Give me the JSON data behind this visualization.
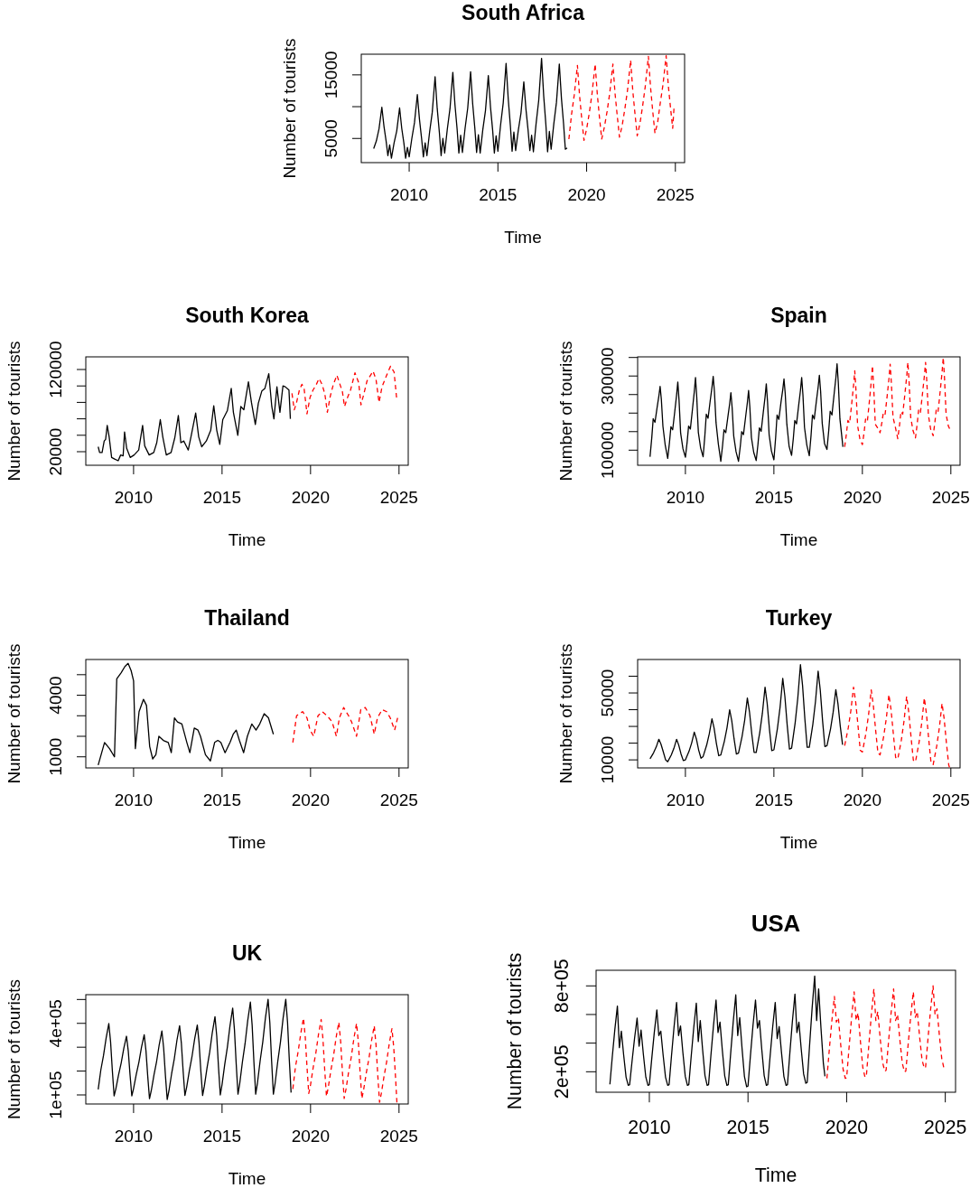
{
  "chart_data": [
    {
      "type": "line",
      "title": "South Africa",
      "xlabel": "Time",
      "ylabel": "Number of tourists",
      "xlim": [
        2007.3,
        2025.52
      ],
      "xticks": [
        2010,
        2015,
        2020,
        2025
      ],
      "ylim": [
        1200,
        18250
      ],
      "yticks": [
        5000,
        {
          "value": 10000,
          "label": null
        },
        15000
      ],
      "x": [
        2008,
        2008.15,
        2008.3,
        2008.46,
        2008.58,
        2008.7,
        2008.8,
        2008.9,
        2009,
        2009.15,
        2009.3,
        2009.46,
        2009.58,
        2009.7,
        2009.8,
        2009.9,
        2010,
        2010.15,
        2010.3,
        2010.46,
        2010.58,
        2010.7,
        2010.8,
        2010.9,
        2011,
        2011.15,
        2011.3,
        2011.46,
        2011.58,
        2011.7,
        2011.8,
        2011.9,
        2012,
        2012.15,
        2012.3,
        2012.46,
        2012.58,
        2012.7,
        2012.8,
        2012.9,
        2013,
        2013.15,
        2013.3,
        2013.46,
        2013.58,
        2013.7,
        2013.8,
        2013.9,
        2014,
        2014.15,
        2014.3,
        2014.46,
        2014.58,
        2014.7,
        2014.8,
        2014.9,
        2015,
        2015.15,
        2015.3,
        2015.46,
        2015.58,
        2015.7,
        2015.8,
        2015.9,
        2016,
        2016.15,
        2016.3,
        2016.46,
        2016.58,
        2016.7,
        2016.8,
        2016.9,
        2017,
        2017.15,
        2017.3,
        2017.46,
        2017.58,
        2017.7,
        2017.8,
        2017.9,
        2018,
        2018.15,
        2018.3,
        2018.46,
        2018.58,
        2018.7,
        2018.8,
        2018.9
      ],
      "series": [
        {
          "color": "#000000",
          "line_style": "solid",
          "values": [
            3400,
            4600,
            6500,
            9900,
            6900,
            4600,
            2300,
            4000,
            1900,
            4300,
            6200,
            9800,
            6600,
            4300,
            1900,
            3600,
            2100,
            5000,
            7500,
            11900,
            8000,
            5000,
            2100,
            4300,
            2300,
            6000,
            9100,
            14700,
            9700,
            6000,
            2300,
            5000,
            2700,
            6500,
            9700,
            15400,
            10300,
            6500,
            2700,
            5500,
            2800,
            6600,
            9800,
            15500,
            10400,
            6600,
            2800,
            5600,
            2700,
            6400,
            9400,
            14900,
            10000,
            6400,
            2700,
            5400,
            3000,
            7100,
            10600,
            16800,
            11300,
            7100,
            3000,
            6000,
            3100,
            6300,
            9000,
            13900,
            9600,
            6300,
            3100,
            5500,
            2900,
            7300,
            11000,
            17600,
            11700,
            7300,
            2900,
            6100,
            3300,
            7300,
            10700,
            16700,
            11300,
            7300,
            3300,
            3500
          ]
        },
        {
          "color": "#ff0000",
          "line_style": "dashed",
          "x": [
            2019,
            2019.15,
            2019.3,
            2019.48,
            2019.6,
            2019.72,
            2019.85,
            2020,
            2020.15,
            2020.3,
            2020.48,
            2020.6,
            2020.72,
            2020.85,
            2021,
            2021.15,
            2021.3,
            2021.48,
            2021.6,
            2021.72,
            2021.85,
            2022,
            2022.15,
            2022.3,
            2022.48,
            2022.6,
            2022.72,
            2022.85,
            2023,
            2023.15,
            2023.3,
            2023.48,
            2023.6,
            2023.72,
            2023.85,
            2024,
            2024.15,
            2024.3,
            2024.48,
            2024.6,
            2024.72,
            2024.85,
            2024.92
          ],
          "values": [
            4900,
            8800,
            11800,
            16500,
            11800,
            8200,
            4700,
            6500,
            9000,
            12000,
            16700,
            12000,
            8400,
            4900,
            6800,
            9200,
            12100,
            16700,
            12100,
            8700,
            5200,
            7000,
            9600,
            12500,
            17300,
            12500,
            9000,
            5400,
            7300,
            10000,
            13100,
            17900,
            13100,
            9400,
            5800,
            7500,
            10600,
            13400,
            18000,
            13400,
            10000,
            6600,
            9700
          ]
        }
      ]
    },
    {
      "type": "line",
      "title": "South Korea",
      "xlabel": "Time",
      "ylabel": "Number of tourists",
      "xlim": [
        2007.3,
        2025.52
      ],
      "xticks": [
        2010,
        2015,
        2020,
        2025
      ],
      "ylim": [
        3500,
        135400
      ],
      "yticks": [
        20000,
        {
          "value": 40000,
          "label": null
        },
        {
          "value": 60000,
          "label": null
        },
        {
          "value": 80000,
          "label": null
        },
        {
          "value": 100000,
          "label": null
        },
        120000
      ],
      "x": [
        2008,
        2008.08,
        2008.22,
        2008.34,
        2008.42,
        2008.51,
        2008.62,
        2008.76,
        2008.93,
        2009.13,
        2009.27,
        2009.41,
        2009.49,
        2009.61,
        2009.81,
        2010.03,
        2010.29,
        2010.51,
        2010.63,
        2010.88,
        2011.14,
        2011.31,
        2011.51,
        2011.65,
        2011.85,
        2012.12,
        2012.33,
        2012.53,
        2012.67,
        2012.84,
        2013.09,
        2013.26,
        2013.51,
        2013.68,
        2013.85,
        2014.11,
        2014.36,
        2014.53,
        2014.7,
        2014.87,
        2015.04,
        2015.3,
        2015.52,
        2015.64,
        2015.89,
        2016.06,
        2016.23,
        2016.49,
        2016.66,
        2016.88,
        2017.05,
        2017.25,
        2017.42,
        2017.64,
        2017.81,
        2017.93,
        2018.1,
        2018.27,
        2018.44,
        2018.57,
        2018.78,
        2018.86
      ],
      "series": [
        {
          "color": "#000000",
          "line_style": "solid",
          "values": [
            26000,
            19000,
            19000,
            33000,
            35000,
            52000,
            38000,
            13000,
            11000,
            9000,
            16000,
            15000,
            44000,
            24000,
            13000,
            16000,
            22000,
            52000,
            27000,
            16000,
            19000,
            31000,
            59000,
            38000,
            16000,
            19000,
            37000,
            64000,
            31000,
            33000,
            22000,
            40000,
            67000,
            38000,
            26000,
            33000,
            46000,
            76000,
            46000,
            29000,
            59000,
            70000,
            97000,
            68000,
            40000,
            75000,
            71000,
            105000,
            80000,
            53000,
            79000,
            94000,
            97000,
            115000,
            75000,
            60000,
            99000,
            68000,
            100000,
            99000,
            95000,
            60000
          ]
        },
        {
          "color": "#ff0000",
          "line_style": "dashed",
          "x": [
            2018.95,
            2019.08,
            2019.2,
            2019.37,
            2019.51,
            2019.63,
            2019.8,
            2019.97,
            2020.14,
            2020.31,
            2020.48,
            2020.65,
            2020.81,
            2020.95,
            2021.12,
            2021.29,
            2021.49,
            2021.63,
            2021.8,
            2021.92,
            2022.09,
            2022.26,
            2022.51,
            2022.72,
            2022.85,
            2023.02,
            2023.19,
            2023.53,
            2023.7,
            2023.87,
            2024.04,
            2024.3,
            2024.52,
            2024.72,
            2024.86
          ],
          "values": [
            91000,
            71000,
            79000,
            95000,
            102000,
            98000,
            66000,
            86000,
            95000,
            101000,
            109000,
            102000,
            90000,
            68000,
            88000,
            102000,
            113000,
            104000,
            93000,
            75000,
            86000,
            95000,
            116000,
            104000,
            77000,
            91000,
            106000,
            118000,
            108000,
            80000,
            99000,
            113000,
            124000,
            117000,
            86000
          ]
        }
      ]
    },
    {
      "type": "line",
      "title": "Spain",
      "xlabel": "Time",
      "ylabel": "Number of tourists",
      "xlim": [
        2007.3,
        2025.52
      ],
      "xticks": [
        2010,
        2015,
        2020,
        2025
      ],
      "ylim": [
        59300,
        351700
      ],
      "yticks": [
        100000,
        {
          "value": 150000,
          "label": null
        },
        {
          "value": 200000,
          "label": null
        },
        {
          "value": 250000,
          "label": null
        },
        300000,
        {
          "value": 350000,
          "label": null
        }
      ],
      "x": [
        2008,
        2008.1,
        2008.18,
        2008.28,
        2008.4,
        2008.5,
        2008.57,
        2008.64,
        2008.73,
        2008.86,
        2009,
        2009.1,
        2009.18,
        2009.28,
        2009.4,
        2009.5,
        2009.57,
        2009.64,
        2009.73,
        2009.86,
        2010,
        2010.1,
        2010.18,
        2010.28,
        2010.4,
        2010.5,
        2010.57,
        2010.64,
        2010.73,
        2010.86,
        2011,
        2011.1,
        2011.18,
        2011.28,
        2011.4,
        2011.5,
        2011.57,
        2011.64,
        2011.73,
        2011.86,
        2012,
        2012.1,
        2012.18,
        2012.28,
        2012.4,
        2012.5,
        2012.57,
        2012.64,
        2012.73,
        2012.86,
        2013,
        2013.1,
        2013.18,
        2013.28,
        2013.4,
        2013.5,
        2013.57,
        2013.64,
        2013.73,
        2013.86,
        2014,
        2014.1,
        2014.18,
        2014.28,
        2014.4,
        2014.5,
        2014.57,
        2014.64,
        2014.73,
        2014.86,
        2015,
        2015.1,
        2015.18,
        2015.28,
        2015.4,
        2015.5,
        2015.57,
        2015.64,
        2015.73,
        2015.86,
        2016,
        2016.1,
        2016.18,
        2016.28,
        2016.4,
        2016.5,
        2016.57,
        2016.64,
        2016.73,
        2016.86,
        2017,
        2017.1,
        2017.18,
        2017.28,
        2017.4,
        2017.5,
        2017.57,
        2017.64,
        2017.73,
        2017.86,
        2018,
        2018.1,
        2018.18,
        2018.28,
        2018.4,
        2018.5,
        2018.57,
        2018.64,
        2018.73,
        2018.9
      ],
      "series": [
        {
          "color": "#000000",
          "line_style": "solid",
          "values": [
            82000,
            134000,
            185000,
            175000,
            215000,
            246000,
            272000,
            237000,
            164000,
            113000,
            78000,
            121000,
            163000,
            155000,
            205000,
            248000,
            284000,
            235000,
            146000,
            104000,
            81000,
            123000,
            165000,
            157000,
            211000,
            257000,
            296000,
            244000,
            148000,
            106000,
            82000,
            140000,
            197000,
            186000,
            233000,
            269000,
            299000,
            258000,
            174000,
            117000,
            70000,
            113000,
            155000,
            147000,
            190000,
            225000,
            255000,
            215000,
            138000,
            96000,
            70000,
            110000,
            150000,
            142000,
            189000,
            228000,
            261000,
            217000,
            134000,
            94000,
            72000,
            116000,
            160000,
            151000,
            202000,
            243000,
            279000,
            231000,
            142000,
            98000,
            74000,
            135000,
            195000,
            183000,
            229000,
            263000,
            292000,
            253000,
            171000,
            110000,
            86000,
            133000,
            180000,
            171000,
            221000,
            261000,
            296000,
            250000,
            161000,
            114000,
            85000,
            140000,
            195000,
            184000,
            232000,
            270000,
            302000,
            259000,
            173000,
            118000,
            102000,
            154000,
            205000,
            195000,
            250000,
            294000,
            333000,
            282000,
            185000,
            109000
          ]
        },
        {
          "color": "#ff0000",
          "line_style": "dashed",
          "x": [
            2019,
            2019.1,
            2019.18,
            2019.28,
            2019.4,
            2019.5,
            2019.57,
            2019.64,
            2019.73,
            2019.86,
            2020,
            2020.1,
            2020.18,
            2020.28,
            2020.4,
            2020.5,
            2020.57,
            2020.64,
            2020.73,
            2020.86,
            2021,
            2021.1,
            2021.18,
            2021.28,
            2021.4,
            2021.5,
            2021.57,
            2021.64,
            2021.73,
            2021.86,
            2022,
            2022.1,
            2022.18,
            2022.28,
            2022.4,
            2022.5,
            2022.57,
            2022.64,
            2022.73,
            2022.86,
            2023,
            2023.1,
            2023.18,
            2023.28,
            2023.4,
            2023.5,
            2023.57,
            2023.64,
            2023.73,
            2023.86,
            2024,
            2024.1,
            2024.18,
            2024.28,
            2024.4,
            2024.5,
            2024.57,
            2024.64,
            2024.73,
            2024.86,
            2024.93
          ],
          "values": [
            109000,
            145000,
            180000,
            173000,
            227000,
            274000,
            314000,
            260000,
            166000,
            130000,
            115000,
            149000,
            184000,
            177000,
            234000,
            285000,
            328000,
            270000,
            170000,
            160000,
            147000,
            174000,
            200000,
            195000,
            246000,
            292000,
            332000,
            279000,
            189000,
            163000,
            131000,
            168000,
            204000,
            197000,
            250000,
            297000,
            337000,
            284000,
            189000,
            153000,
            133000,
            172000,
            210000,
            202000,
            254000,
            299000,
            337000,
            286000,
            195000,
            156000,
            139000,
            176000,
            212000,
            205000,
            260000,
            309000,
            350000,
            295000,
            197000,
            165000,
            158000
          ]
        }
      ]
    },
    {
      "type": "line",
      "title": "Thailand",
      "xlabel": "Time",
      "ylabel": "Number of tourists",
      "xlim": [
        2007.3,
        2025.52
      ],
      "xticks": [
        2010,
        2015,
        2020,
        2025
      ],
      "ylim": [
        460,
        5740
      ],
      "yticks": [
        1000,
        {
          "value": 2000,
          "label": null
        },
        {
          "value": 3000,
          "label": null
        },
        4000,
        {
          "value": 5000,
          "label": null
        }
      ],
      "x": [
        2008,
        2008.36,
        2008.64,
        2008.92,
        2009.05,
        2009.3,
        2009.51,
        2009.69,
        2009.86,
        2010,
        2010.1,
        2010.31,
        2010.56,
        2010.73,
        2010.91,
        2011.08,
        2011.26,
        2011.43,
        2011.68,
        2011.96,
        2012.13,
        2012.31,
        2012.48,
        2012.73,
        2013.01,
        2013.18,
        2013.43,
        2013.64,
        2013.78,
        2014.06,
        2014.34,
        2014.58,
        2014.76,
        2014.93,
        2015.17,
        2015.45,
        2015.63,
        2015.8,
        2015.98,
        2016.22,
        2016.43,
        2016.68,
        2016.92,
        2017.13,
        2017.38,
        2017.62,
        2017.9
      ],
      "series": [
        {
          "color": "#000000",
          "line_style": "solid",
          "values": [
            600,
            1700,
            1400,
            1000,
            4800,
            5100,
            5400,
            5550,
            5200,
            4700,
            1400,
            3200,
            3800,
            3500,
            1500,
            900,
            1100,
            2000,
            1800,
            1700,
            1200,
            2900,
            2700,
            2600,
            1700,
            1200,
            2400,
            2300,
            2000,
            1100,
            800,
            1700,
            1800,
            1700,
            1200,
            1700,
            2100,
            2300,
            1800,
            1200,
            2000,
            2600,
            2300,
            2600,
            3100,
            2900,
            2100
          ]
        },
        {
          "color": "#ff0000",
          "line_style": "dashed",
          "x": [
            2019,
            2019.21,
            2019.55,
            2019.8,
            2019.97,
            2020.18,
            2020.42,
            2020.66,
            2020.94,
            2021.22,
            2021.46,
            2021.63,
            2021.87,
            2022.15,
            2022.32,
            2022.6,
            2022.84,
            2023.09,
            2023.36,
            2023.6,
            2023.78,
            2024.05,
            2024.3,
            2024.5,
            2024.75,
            2024.92
          ],
          "values": [
            1700,
            3000,
            3200,
            2900,
            2300,
            2000,
            3000,
            3200,
            3000,
            2700,
            2000,
            2900,
            3400,
            3000,
            2700,
            2000,
            3300,
            3400,
            3000,
            2100,
            2900,
            3300,
            3200,
            2900,
            2300,
            2900
          ]
        }
      ]
    },
    {
      "type": "line",
      "title": "Turkey",
      "xlabel": "Time",
      "ylabel": "Number of tourists",
      "xlim": [
        2007.3,
        2025.52
      ],
      "xticks": [
        2010,
        2015,
        2020,
        2025
      ],
      "ylim": [
        5200,
        70000
      ],
      "yticks": [
        10000,
        {
          "value": 20000,
          "label": null
        },
        {
          "value": 30000,
          "label": null
        },
        {
          "value": 40000,
          "label": null
        },
        50000,
        {
          "value": 60000,
          "label": null
        }
      ],
      "x": [
        2008,
        2008.2,
        2008.35,
        2008.5,
        2008.62,
        2008.75,
        2008.88,
        2009,
        2009.2,
        2009.35,
        2009.5,
        2009.62,
        2009.75,
        2009.88,
        2010,
        2010.2,
        2010.35,
        2010.5,
        2010.62,
        2010.75,
        2010.88,
        2011,
        2011.2,
        2011.35,
        2011.5,
        2011.62,
        2011.75,
        2011.88,
        2012,
        2012.2,
        2012.35,
        2012.5,
        2012.62,
        2012.75,
        2012.88,
        2013,
        2013.2,
        2013.35,
        2013.5,
        2013.62,
        2013.75,
        2013.88,
        2014,
        2014.2,
        2014.35,
        2014.5,
        2014.62,
        2014.75,
        2014.88,
        2015,
        2015.2,
        2015.35,
        2015.5,
        2015.62,
        2015.75,
        2015.88,
        2016,
        2016.2,
        2016.35,
        2016.5,
        2016.62,
        2016.75,
        2016.88,
        2017,
        2017.2,
        2017.35,
        2017.5,
        2017.62,
        2017.75,
        2017.88,
        2018,
        2018.2,
        2018.35,
        2018.5,
        2018.62,
        2018.75,
        2018.88
      ],
      "series": [
        {
          "color": "#000000",
          "line_style": "solid",
          "values": [
            10700,
            14200,
            17700,
            22300,
            19400,
            14800,
            10000,
            8900,
            12900,
            16900,
            22300,
            18900,
            13600,
            9600,
            10000,
            15000,
            20000,
            26600,
            22500,
            15800,
            11000,
            12000,
            18800,
            25600,
            34600,
            29000,
            19900,
            12500,
            13000,
            21100,
            29200,
            40000,
            33300,
            22500,
            13500,
            14000,
            23900,
            33800,
            47000,
            38800,
            25600,
            14500,
            14500,
            26200,
            37900,
            53500,
            43800,
            28200,
            15500,
            16000,
            28800,
            41600,
            58700,
            48000,
            30900,
            16500,
            17000,
            32000,
            46900,
            66900,
            54400,
            34500,
            17500,
            17500,
            31200,
            44900,
            63100,
            51700,
            33500,
            18000,
            18500,
            28500,
            38600,
            52000,
            43600,
            30200,
            19000
          ]
        },
        {
          "color": "#ff0000",
          "line_style": "dashed",
          "x": [
            2019,
            2019.2,
            2019.35,
            2019.5,
            2019.62,
            2019.75,
            2019.88,
            2020,
            2020.2,
            2020.35,
            2020.5,
            2020.62,
            2020.75,
            2020.88,
            2021,
            2021.2,
            2021.35,
            2021.5,
            2021.62,
            2021.75,
            2021.88,
            2022,
            2022.2,
            2022.35,
            2022.5,
            2022.62,
            2022.75,
            2022.88,
            2023,
            2023.2,
            2023.35,
            2023.5,
            2023.62,
            2023.75,
            2023.88,
            2024,
            2024.2,
            2024.35,
            2024.5,
            2024.62,
            2024.75,
            2024.88,
            2024.92
          ],
          "values": [
            18500,
            29000,
            39500,
            53500,
            44800,
            30800,
            15700,
            14700,
            25800,
            37000,
            51800,
            42500,
            27700,
            14000,
            13000,
            23800,
            34600,
            49000,
            40000,
            25600,
            11400,
            10400,
            21700,
            33000,
            48000,
            38600,
            23600,
            9800,
            8800,
            20300,
            31700,
            47000,
            37500,
            22200,
            8200,
            7200,
            18200,
            29200,
            43800,
            34700,
            20000,
            7000,
            5500
          ]
        }
      ]
    },
    {
      "type": "line",
      "title": "UK",
      "xlabel": "Time",
      "ylabel": "Number of tourists",
      "xlim": [
        2007.3,
        2025.52
      ],
      "xticks": [
        2010,
        2015,
        2020,
        2025
      ],
      "ylim": [
        62100,
        520200
      ],
      "yticks": [
        {
          "value": 100000,
          "label": "1e+05"
        },
        {
          "value": 200000,
          "label": null
        },
        {
          "value": 300000,
          "label": null
        },
        {
          "value": 400000,
          "label": "4e+05"
        },
        {
          "value": 500000,
          "label": null
        }
      ],
      "x": [
        2008,
        2008.15,
        2008.3,
        2008.45,
        2008.6,
        2008.7,
        2008.8,
        2008.9,
        2009,
        2009.15,
        2009.3,
        2009.45,
        2009.6,
        2009.7,
        2009.8,
        2009.9,
        2010,
        2010.15,
        2010.3,
        2010.45,
        2010.6,
        2010.7,
        2010.8,
        2010.9,
        2011,
        2011.15,
        2011.3,
        2011.45,
        2011.6,
        2011.7,
        2011.8,
        2011.9,
        2012,
        2012.15,
        2012.3,
        2012.45,
        2012.6,
        2012.7,
        2012.8,
        2012.9,
        2013,
        2013.15,
        2013.3,
        2013.45,
        2013.6,
        2013.7,
        2013.8,
        2013.9,
        2014,
        2014.15,
        2014.3,
        2014.45,
        2014.6,
        2014.7,
        2014.8,
        2014.9,
        2015,
        2015.15,
        2015.3,
        2015.45,
        2015.6,
        2015.7,
        2015.8,
        2015.9,
        2016,
        2016.15,
        2016.3,
        2016.45,
        2016.6,
        2016.7,
        2016.8,
        2016.9,
        2017,
        2017.15,
        2017.3,
        2017.45,
        2017.6,
        2017.7,
        2017.8,
        2017.9,
        2018,
        2018.15,
        2018.3,
        2018.45,
        2018.6,
        2018.7,
        2018.8,
        2018.9
      ],
      "series": [
        {
          "color": "#000000",
          "line_style": "solid",
          "values": [
            123000,
            205000,
            265000,
            339000,
            399000,
            323000,
            202000,
            96000,
            126000,
            184000,
            234000,
            296000,
            346000,
            284000,
            184000,
            96000,
            127000,
            186000,
            237000,
            301000,
            352000,
            285000,
            178000,
            84000,
            118000,
            183000,
            240000,
            311000,
            368000,
            296000,
            181000,
            81000,
            118000,
            189000,
            251000,
            329000,
            390000,
            317000,
            200000,
            98000,
            133000,
            201000,
            260000,
            334000,
            393000,
            319000,
            201000,
            98000,
            137000,
            213000,
            279000,
            362000,
            428000,
            346000,
            215000,
            100000,
            144000,
            227000,
            300000,
            391000,
            464000,
            373000,
            229000,
            103000,
            149000,
            238000,
            315000,
            412000,
            489000,
            392000,
            238000,
            103000,
            150000,
            242000,
            322000,
            422000,
            501000,
            402000,
            242000,
            103000,
            150000,
            242000,
            322000,
            422000,
            501000,
            404000,
            247000,
            110000
          ]
        },
        {
          "color": "#ff0000",
          "line_style": "dashed",
          "x": [
            2019,
            2019.15,
            2019.3,
            2019.45,
            2019.6,
            2019.7,
            2019.8,
            2019.9,
            2020,
            2020.15,
            2020.3,
            2020.45,
            2020.6,
            2020.7,
            2020.8,
            2020.9,
            2021,
            2021.15,
            2021.3,
            2021.45,
            2021.6,
            2021.7,
            2021.8,
            2021.9,
            2022,
            2022.15,
            2022.3,
            2022.45,
            2022.6,
            2022.7,
            2022.8,
            2022.9,
            2023,
            2023.15,
            2023.3,
            2023.45,
            2023.6,
            2023.7,
            2023.8,
            2023.9,
            2024,
            2024.15,
            2024.3,
            2024.45,
            2024.6,
            2024.7,
            2024.8,
            2024.88
          ],
          "values": [
            125000,
            219000,
            282000,
            359000,
            422000,
            343000,
            217000,
            106000,
            143000,
            215000,
            276000,
            354000,
            416000,
            335000,
            206000,
            94000,
            131000,
            203000,
            265000,
            343000,
            405000,
            325000,
            197000,
            85000,
            123000,
            195000,
            258000,
            337000,
            400000,
            322000,
            195000,
            85000,
            122000,
            192000,
            253000,
            329000,
            390000,
            310000,
            181000,
            69000,
            106000,
            177000,
            239000,
            316000,
            378000,
            300000,
            177000,
            69000
          ]
        }
      ]
    },
    {
      "type": "line",
      "title": "USA",
      "xlabel": "Time",
      "ylabel": "Number of tourists",
      "xlim": [
        2007.3,
        2025.52
      ],
      "xticks": [
        2010,
        2015,
        2020,
        2025
      ],
      "ylim": [
        57000,
        909000
      ],
      "yticks": [
        {
          "value": 200000,
          "label": "2e+05"
        },
        {
          "value": 400000,
          "label": null
        },
        {
          "value": 600000,
          "label": null
        },
        {
          "value": 800000,
          "label": "8e+05"
        }
      ],
      "x": [
        2008,
        2008.12,
        2008.25,
        2008.38,
        2008.48,
        2008.58,
        2008.7,
        2008.82,
        2008.93,
        2009,
        2009.12,
        2009.25,
        2009.38,
        2009.48,
        2009.58,
        2009.7,
        2009.82,
        2009.93,
        2010,
        2010.12,
        2010.25,
        2010.38,
        2010.48,
        2010.58,
        2010.7,
        2010.82,
        2010.93,
        2011,
        2011.12,
        2011.25,
        2011.38,
        2011.48,
        2011.58,
        2011.7,
        2011.82,
        2011.93,
        2012,
        2012.12,
        2012.25,
        2012.38,
        2012.48,
        2012.58,
        2012.7,
        2012.82,
        2012.93,
        2013,
        2013.12,
        2013.25,
        2013.38,
        2013.48,
        2013.58,
        2013.7,
        2013.82,
        2013.93,
        2014,
        2014.12,
        2014.25,
        2014.38,
        2014.48,
        2014.58,
        2014.7,
        2014.82,
        2014.93,
        2015,
        2015.12,
        2015.25,
        2015.38,
        2015.48,
        2015.58,
        2015.7,
        2015.82,
        2015.93,
        2016,
        2016.12,
        2016.25,
        2016.38,
        2016.48,
        2016.58,
        2016.7,
        2016.82,
        2016.93,
        2017,
        2017.12,
        2017.25,
        2017.38,
        2017.48,
        2017.58,
        2017.7,
        2017.82,
        2017.93,
        2018,
        2018.12,
        2018.25,
        2018.38,
        2018.48,
        2018.58,
        2018.7,
        2018.82,
        2018.9
      ],
      "series": [
        {
          "color": "#000000",
          "line_style": "solid",
          "values": [
            112000,
            303000,
            495000,
            659000,
            368000,
            484000,
            314000,
            162000,
            105000,
            110000,
            270000,
            434000,
            575000,
            379000,
            491000,
            317000,
            163000,
            105000,
            110000,
            290000,
            474000,
            632000,
            453000,
            484000,
            314000,
            162000,
            105000,
            110000,
            308000,
            511000,
            684000,
            453000,
            520000,
            333000,
            168000,
            105000,
            110000,
            306000,
            508000,
            680000,
            411000,
            558000,
            354000,
            173000,
            105000,
            110000,
            314000,
            522000,
            701000,
            474000,
            547000,
            349000,
            172000,
            105000,
            110000,
            326000,
            547000,
            737000,
            453000,
            579000,
            361000,
            167000,
            95000,
            100000,
            307000,
            519000,
            701000,
            505000,
            558000,
            354000,
            173000,
            105000,
            110000,
            308000,
            511000,
            684000,
            432000,
            516000,
            331000,
            167000,
            105000,
            110000,
            329000,
            552000,
            743000,
            474000,
            547000,
            355000,
            184000,
            120000,
            125000,
            382000,
            645000,
            869000,
            558000,
            779000,
            504000,
            260000,
            168000
          ]
        },
        {
          "color": "#ff0000",
          "line_style": "dashed",
          "x": [
            2019,
            2019.12,
            2019.25,
            2019.38,
            2019.48,
            2019.58,
            2019.7,
            2019.82,
            2019.93,
            2020,
            2020.12,
            2020.25,
            2020.38,
            2020.48,
            2020.58,
            2020.7,
            2020.82,
            2020.93,
            2021,
            2021.12,
            2021.25,
            2021.38,
            2021.48,
            2021.58,
            2021.7,
            2021.82,
            2021.93,
            2022,
            2022.12,
            2022.25,
            2022.38,
            2022.48,
            2022.58,
            2022.7,
            2022.82,
            2022.93,
            2023,
            2023.12,
            2023.25,
            2023.38,
            2023.48,
            2023.58,
            2023.7,
            2023.82,
            2023.93,
            2024,
            2024.12,
            2024.25,
            2024.38,
            2024.48,
            2024.58,
            2024.7,
            2024.82,
            2024.92
          ],
          "values": [
            154000,
            354000,
            555000,
            726000,
            547000,
            579000,
            388000,
            218000,
            154000,
            158000,
            365000,
            577000,
            758000,
            558000,
            611000,
            409000,
            229000,
            162000,
            170000,
            378000,
            594000,
            779000,
            558000,
            620000,
            433000,
            267000,
            204000,
            210000,
            405000,
            607000,
            779000,
            558000,
            600000,
            420000,
            260000,
            200000,
            205000,
            395000,
            591000,
            758000,
            580000,
            620000,
            442000,
            285000,
            225000,
            230000,
            426000,
            628000,
            800000,
            600000,
            640000,
            456000,
            293000,
            232000
          ]
        }
      ]
    }
  ]
}
